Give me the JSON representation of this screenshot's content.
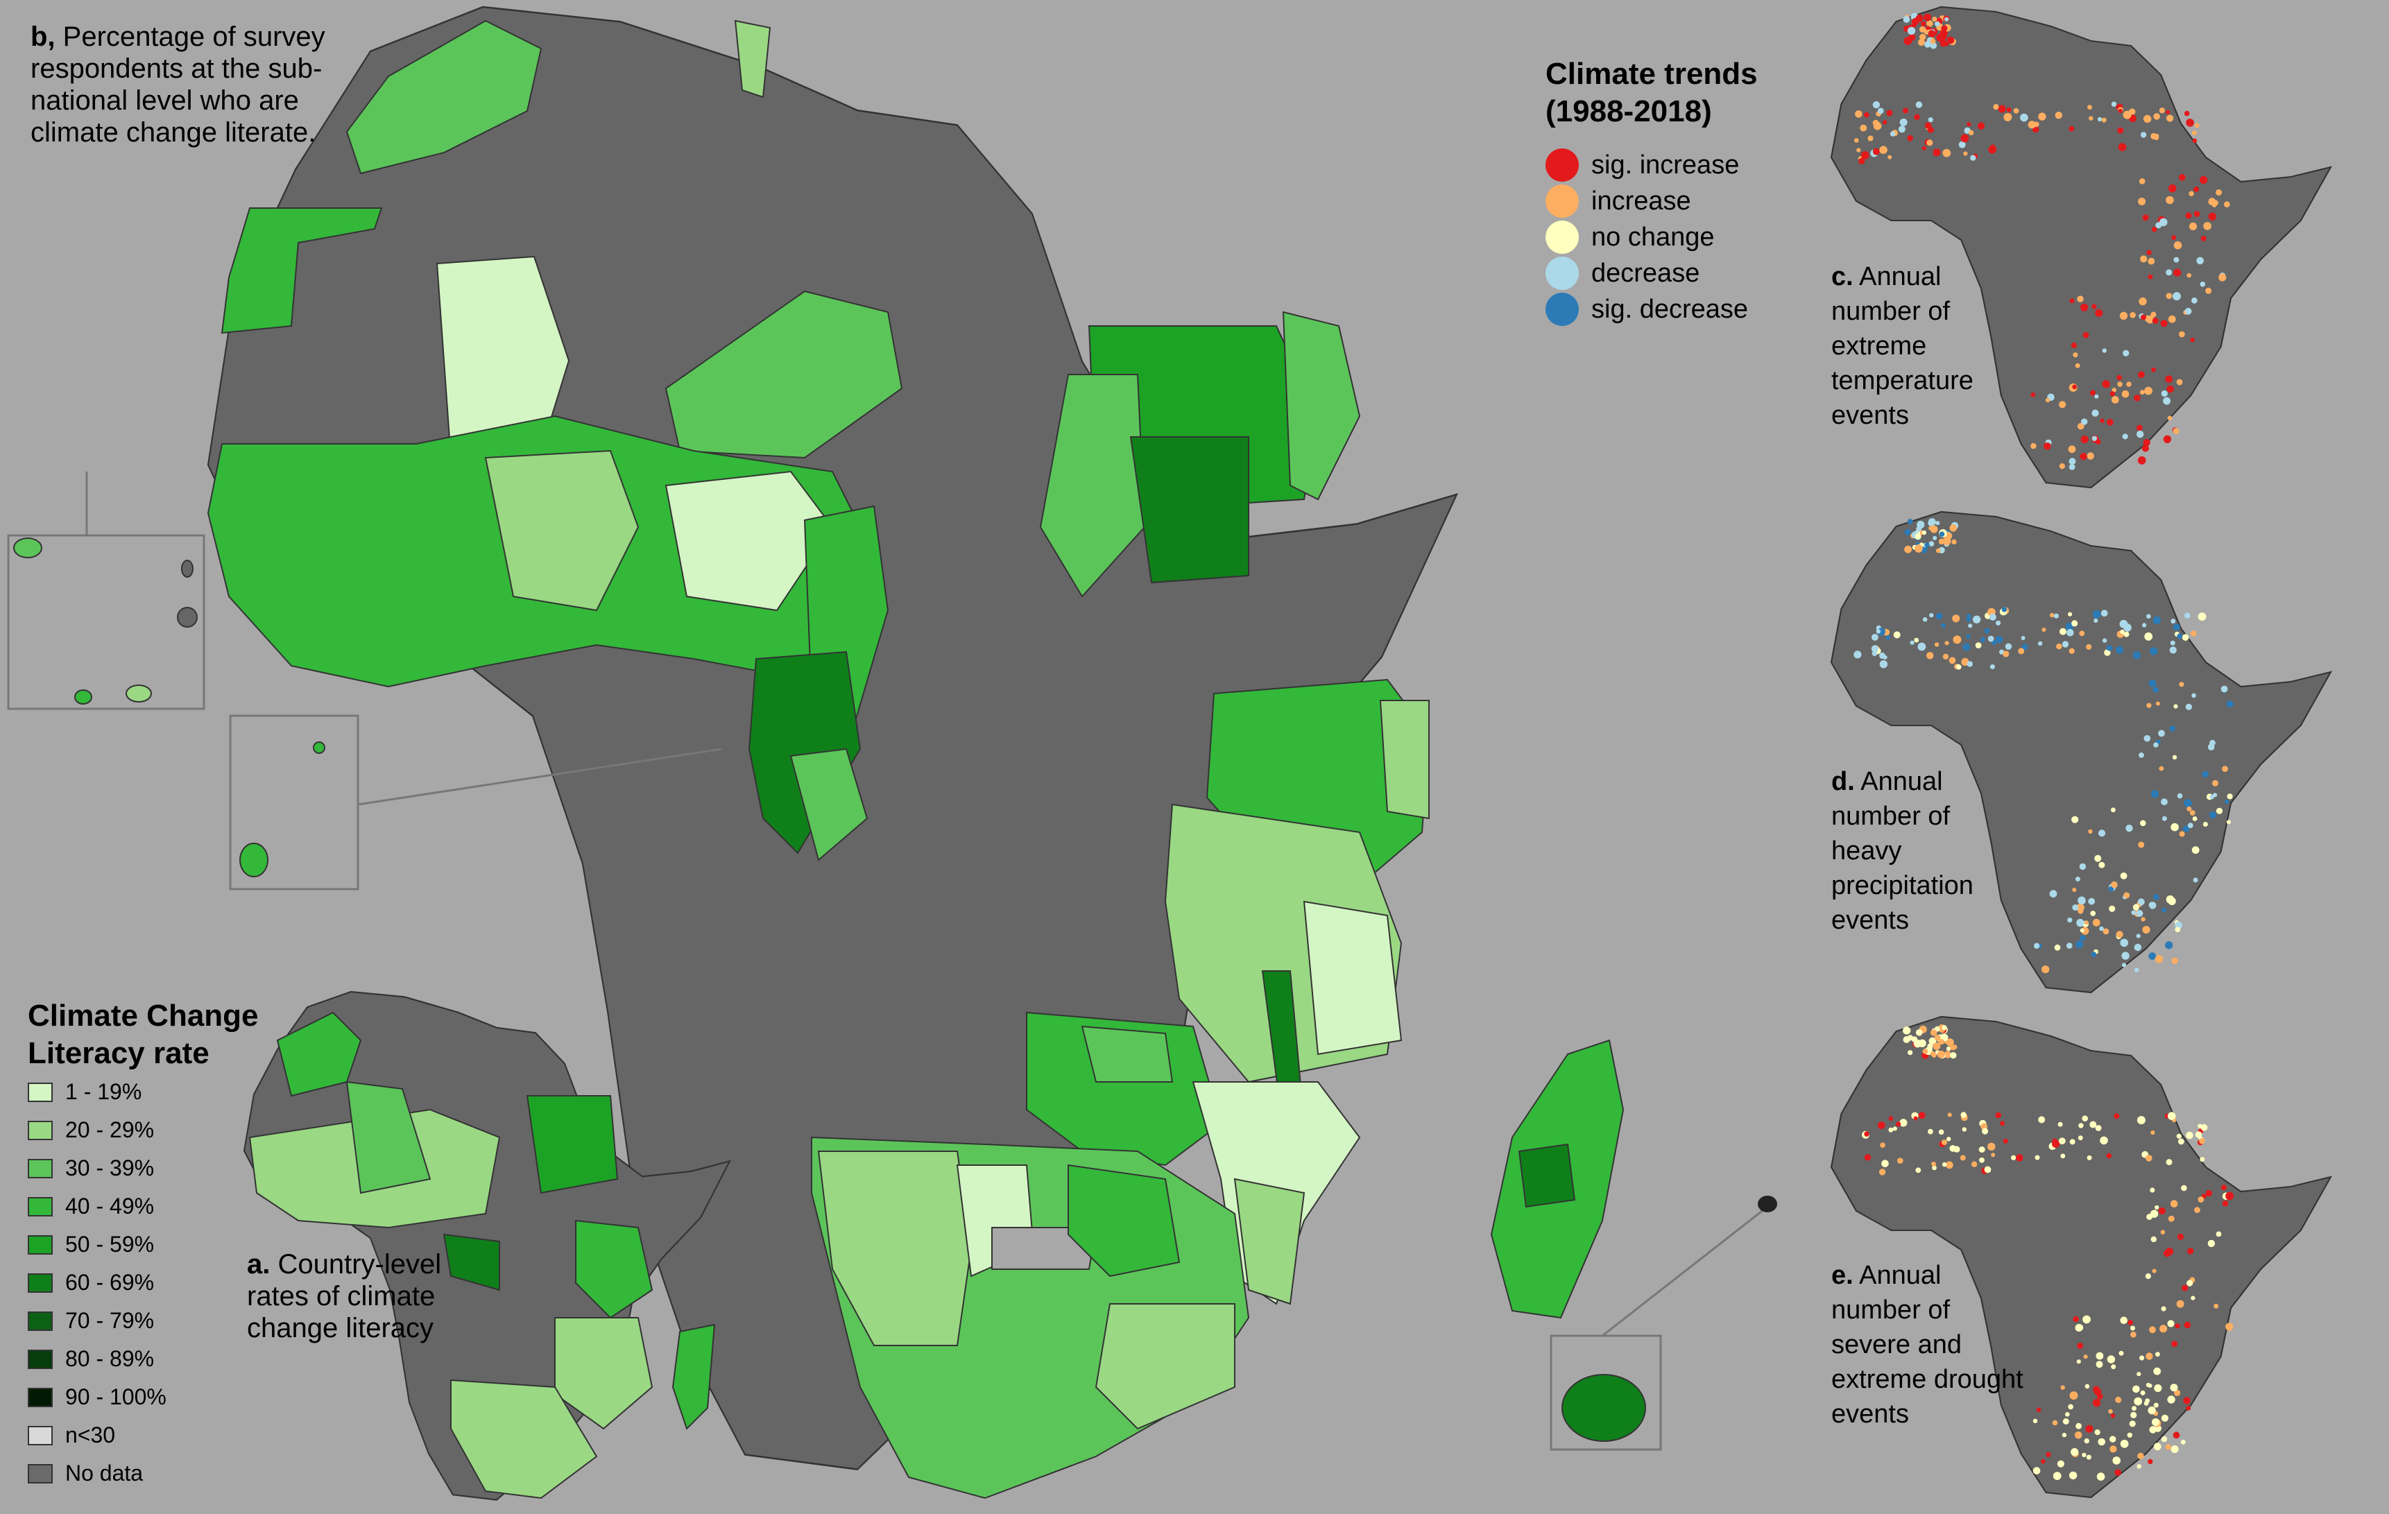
{
  "panel_b": {
    "letter": "b,",
    "text": "Percentage of survey respondents at the sub-national level who are climate change literate."
  },
  "panel_a": {
    "letter": "a.",
    "text": "Country-level rates of climate change literacy"
  },
  "panel_c": {
    "letter": "c.",
    "text": "Annual number of extreme temperature events"
  },
  "panel_d": {
    "letter": "d.",
    "text": "Annual number of heavy precipitation events"
  },
  "panel_e": {
    "letter": "e.",
    "text": "Annual number of severe and extreme drought events"
  },
  "literacy_legend": {
    "title_line1": "Climate Change",
    "title_line2": "Literacy rate",
    "items": [
      {
        "label": " 1 - 19%",
        "color": "#d4f5c4"
      },
      {
        "label": "20 - 29%",
        "color": "#9ad884"
      },
      {
        "label": "30 - 39%",
        "color": "#5cc55a"
      },
      {
        "label": "40 - 49%",
        "color": "#33b83a"
      },
      {
        "label": "50 - 59%",
        "color": "#1ca325"
      },
      {
        "label": "60 - 69%",
        "color": "#0f7f1a"
      },
      {
        "label": "70 - 79%",
        "color": "#0b6114"
      },
      {
        "label": "80 - 89%",
        "color": "#073d0c"
      },
      {
        "label": "90 - 100%",
        "color": "#021a04"
      },
      {
        "label": "n<30",
        "color": "#d9d9d9"
      },
      {
        "label": "No data",
        "color": "#6b6b6b"
      }
    ]
  },
  "trend_legend": {
    "title_line1": "Climate trends",
    "title_line2": "(1988-2018)",
    "items": [
      {
        "label": "sig. increase",
        "color": "#e31a1c"
      },
      {
        "label": "increase",
        "color": "#fdae61"
      },
      {
        "label": "no change",
        "color": "#ffffbf"
      },
      {
        "label": "decrease",
        "color": "#abd9e9"
      },
      {
        "label": "sig. decrease",
        "color": "#2c7bb6"
      }
    ]
  },
  "colors": {
    "background": "#a8a8a8",
    "no_data": "#666666",
    "border": "#333333"
  }
}
